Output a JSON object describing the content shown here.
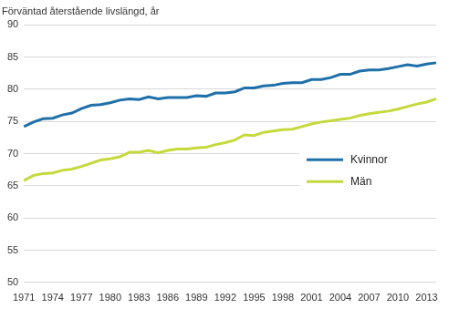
{
  "chart_data": {
    "type": "line",
    "y_label": "Förväntad återstående livslängd, år",
    "categories": [
      "1971",
      null,
      null,
      "1974",
      null,
      null,
      "1977",
      null,
      null,
      "1980",
      null,
      null,
      "1983",
      null,
      null,
      "1986",
      null,
      null,
      "1989",
      null,
      null,
      "1992",
      null,
      null,
      "1995",
      null,
      null,
      "1998",
      null,
      null,
      "2001",
      null,
      null,
      "2004",
      null,
      null,
      "2007",
      null,
      null,
      "2010",
      null,
      null,
      "2013",
      null
    ],
    "series": [
      {
        "name": "Kvinnor",
        "color": "#1f6fa8",
        "values": [
          74.2,
          74.9,
          75.4,
          75.5,
          76.0,
          76.3,
          77.0,
          77.5,
          77.6,
          77.9,
          78.3,
          78.5,
          78.4,
          78.8,
          78.5,
          78.7,
          78.7,
          78.7,
          79.0,
          78.9,
          79.4,
          79.4,
          79.6,
          80.2,
          80.2,
          80.5,
          80.6,
          80.9,
          81.0,
          81.0,
          81.5,
          81.5,
          81.8,
          82.3,
          82.3,
          82.8,
          83.0,
          83.0,
          83.2,
          83.5,
          83.8,
          83.6,
          83.9,
          84.1
        ]
      },
      {
        "name": "Män",
        "color": "#c5d93c",
        "values": [
          65.8,
          66.6,
          66.9,
          67.0,
          67.4,
          67.6,
          68.0,
          68.5,
          69.0,
          69.2,
          69.5,
          70.2,
          70.2,
          70.5,
          70.1,
          70.5,
          70.7,
          70.7,
          70.9,
          71.0,
          71.4,
          71.7,
          72.1,
          72.9,
          72.8,
          73.3,
          73.5,
          73.7,
          73.8,
          74.2,
          74.6,
          74.9,
          75.1,
          75.3,
          75.5,
          75.9,
          76.2,
          76.4,
          76.6,
          76.9,
          77.3,
          77.7,
          78.0,
          78.5
        ]
      }
    ],
    "ylim": [
      50,
      90
    ],
    "yticks": [
      50,
      55,
      60,
      65,
      70,
      75,
      80,
      85,
      90
    ],
    "grid": true,
    "legend": "lower right"
  }
}
